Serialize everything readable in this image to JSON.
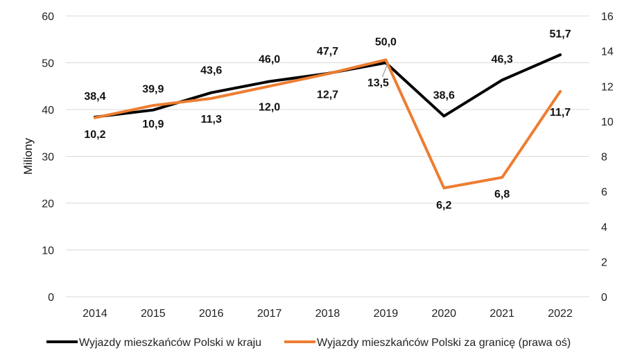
{
  "chart_data": {
    "type": "line",
    "categories": [
      "2014",
      "2015",
      "2016",
      "2017",
      "2018",
      "2019",
      "2020",
      "2021",
      "2022"
    ],
    "ylabel": "Miliony",
    "ylim": [
      0,
      60
    ],
    "y2lim": [
      0,
      16
    ],
    "y_ticks": [
      "0",
      "10",
      "20",
      "30",
      "40",
      "50",
      "60"
    ],
    "y2_ticks": [
      "0",
      "2",
      "4",
      "6",
      "8",
      "10",
      "12",
      "14",
      "16"
    ],
    "grid": true,
    "legend_position": "bottom",
    "series": [
      {
        "name": "Wyjazdy mieszkańców Polski w kraju",
        "axis": "left",
        "color": "#000000",
        "values": [
          38.4,
          39.9,
          43.6,
          46.0,
          47.7,
          50.0,
          38.6,
          46.3,
          51.7
        ],
        "labels": [
          "38,4",
          "39,9",
          "43,6",
          "46,0",
          "47,7",
          "50,0",
          "38,6",
          "46,3",
          "51,7"
        ]
      },
      {
        "name": "Wyjazdy mieszkańców Polski za granicę (prawa oś)",
        "axis": "right",
        "color": "#ED7D31",
        "values": [
          10.2,
          10.9,
          11.3,
          12.0,
          12.7,
          13.5,
          6.2,
          6.8,
          11.7
        ],
        "labels": [
          "10,2",
          "10,9",
          "11,3",
          "12,0",
          "12,7",
          "13,5",
          "6,2",
          "6,8",
          "11,7"
        ]
      }
    ]
  }
}
